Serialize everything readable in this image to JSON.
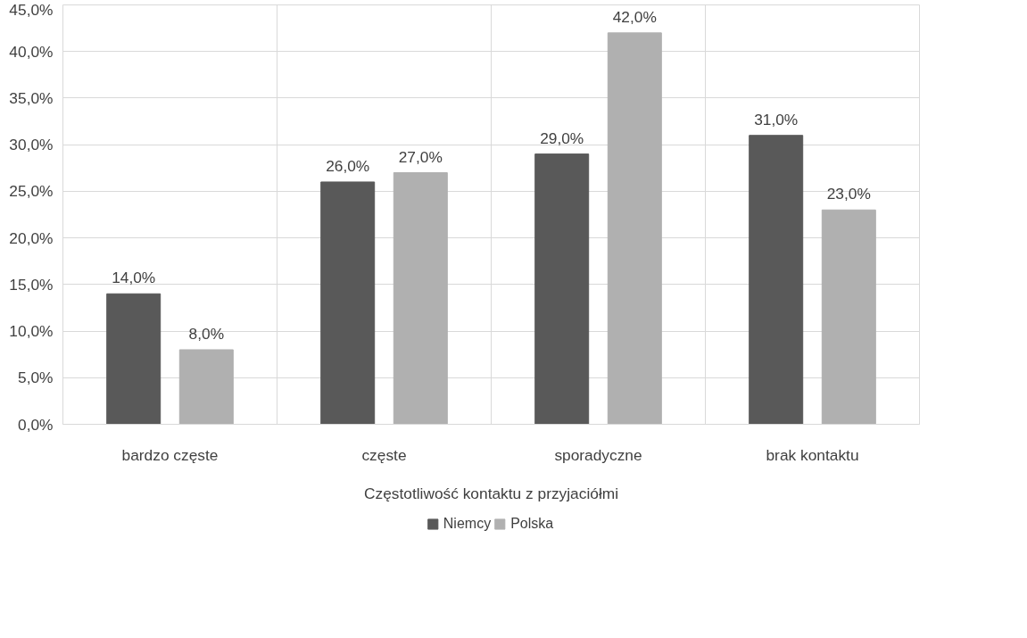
{
  "chart_data": {
    "type": "bar",
    "xlabel": "Częstotliwość kontaktu z przyjaciółmi",
    "categories": [
      "bardzo częste",
      "częste",
      "sporadyczne",
      "brak kontaktu"
    ],
    "series": [
      {
        "name": "Niemcy",
        "color": "#595959",
        "values": [
          14,
          26,
          29,
          31
        ],
        "value_labels": [
          "14,0%",
          "26,0%",
          "29,0%",
          "31,0%"
        ]
      },
      {
        "name": "Polska",
        "color": "#b0b0b0",
        "values": [
          8,
          27,
          42,
          23
        ],
        "value_labels": [
          "8,0%",
          "27,0%",
          "42,0%",
          "23,0%"
        ]
      }
    ],
    "ylim": [
      0,
      45
    ],
    "yticks": [
      {
        "value": 0,
        "label": "0,0%"
      },
      {
        "value": 5,
        "label": "5,0%"
      },
      {
        "value": 10,
        "label": "10,0%"
      },
      {
        "value": 15,
        "label": "15,0%"
      },
      {
        "value": 20,
        "label": "20,0%"
      },
      {
        "value": 25,
        "label": "25,0%"
      },
      {
        "value": 30,
        "label": "30,0%"
      },
      {
        "value": 35,
        "label": "35,0%"
      },
      {
        "value": 40,
        "label": "40,0%"
      },
      {
        "value": 45,
        "label": "45,0%"
      }
    ],
    "grid": true,
    "legend": "bottom"
  }
}
